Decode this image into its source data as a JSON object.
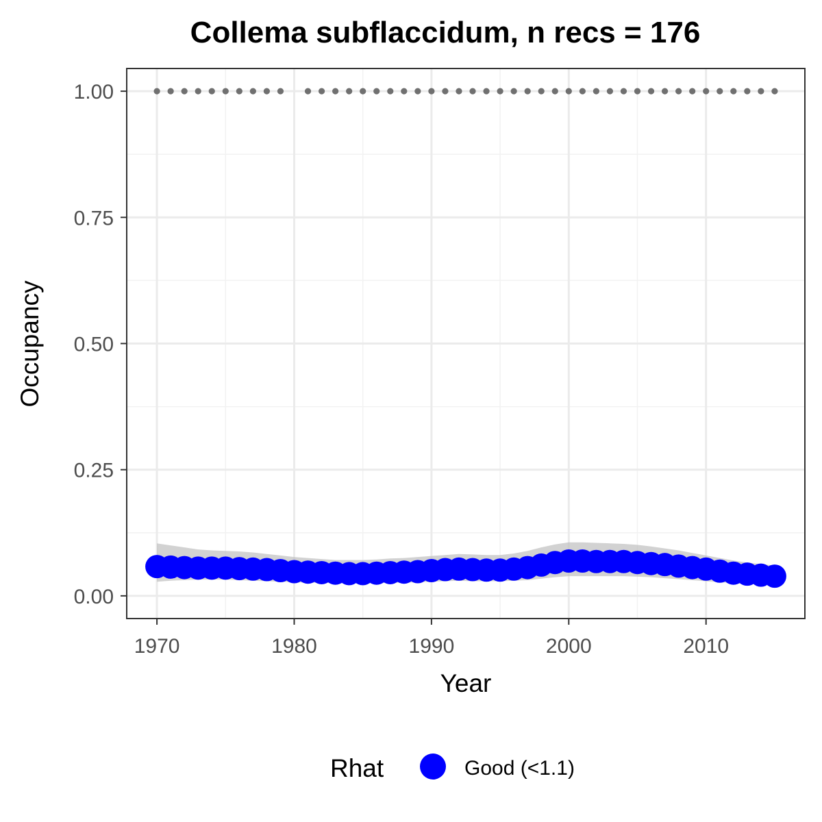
{
  "chart_data": {
    "type": "line",
    "title": "Collema subflaccidum, n recs = 176",
    "xlabel": "Year",
    "ylabel": "Occupancy",
    "xlim": [
      1967.8,
      2017.2
    ],
    "ylim": [
      -0.045,
      1.045
    ],
    "x_ticks": [
      1970,
      1980,
      1990,
      2000,
      2010
    ],
    "x_tick_labels": [
      "1970",
      "1980",
      "1990",
      "2000",
      "2010"
    ],
    "y_ticks": [
      0,
      0.25,
      0.5,
      0.75,
      1
    ],
    "y_tick_labels": [
      "0.00",
      "0.25",
      "0.50",
      "0.75",
      "1.00"
    ],
    "grid": true,
    "legend_position": "bottom",
    "legend": {
      "title": "Rhat",
      "entries": [
        {
          "label": "Good (<1.1)",
          "color": "#0000ff"
        }
      ]
    },
    "series": [
      {
        "type": "points",
        "color": "#0000ff",
        "x": [
          1970,
          1971,
          1972,
          1973,
          1974,
          1975,
          1976,
          1977,
          1978,
          1979,
          1980,
          1981,
          1982,
          1983,
          1984,
          1985,
          1986,
          1987,
          1988,
          1989,
          1990,
          1991,
          1992,
          1993,
          1994,
          1995,
          1996,
          1997,
          1998,
          1999,
          2000,
          2001,
          2002,
          2003,
          2004,
          2005,
          2006,
          2007,
          2008,
          2009,
          2010,
          2011,
          2012,
          2013,
          2014,
          2015
        ],
        "y": [
          0.058,
          0.057,
          0.056,
          0.055,
          0.055,
          0.055,
          0.054,
          0.053,
          0.052,
          0.05,
          0.048,
          0.047,
          0.046,
          0.045,
          0.044,
          0.044,
          0.045,
          0.046,
          0.047,
          0.048,
          0.05,
          0.052,
          0.053,
          0.052,
          0.051,
          0.051,
          0.053,
          0.056,
          0.061,
          0.066,
          0.069,
          0.069,
          0.068,
          0.068,
          0.068,
          0.066,
          0.064,
          0.062,
          0.059,
          0.056,
          0.053,
          0.049,
          0.045,
          0.043,
          0.041,
          0.039
        ],
        "ci_lower": [
          0.028,
          0.03,
          0.031,
          0.032,
          0.032,
          0.032,
          0.031,
          0.03,
          0.029,
          0.028,
          0.027,
          0.026,
          0.026,
          0.025,
          0.025,
          0.025,
          0.025,
          0.026,
          0.026,
          0.027,
          0.028,
          0.029,
          0.03,
          0.029,
          0.029,
          0.029,
          0.03,
          0.031,
          0.034,
          0.037,
          0.039,
          0.039,
          0.039,
          0.039,
          0.039,
          0.038,
          0.037,
          0.035,
          0.033,
          0.031,
          0.029,
          0.027,
          0.025,
          0.024,
          0.023,
          0.022
        ],
        "ci_upper": [
          0.104,
          0.1,
          0.096,
          0.092,
          0.09,
          0.089,
          0.088,
          0.086,
          0.083,
          0.08,
          0.077,
          0.075,
          0.073,
          0.071,
          0.071,
          0.071,
          0.072,
          0.074,
          0.075,
          0.077,
          0.079,
          0.081,
          0.083,
          0.082,
          0.081,
          0.081,
          0.084,
          0.089,
          0.096,
          0.102,
          0.106,
          0.106,
          0.105,
          0.104,
          0.103,
          0.101,
          0.098,
          0.094,
          0.09,
          0.085,
          0.08,
          0.075,
          0.07,
          0.066,
          0.063,
          0.06
        ]
      },
      {
        "type": "record-markers",
        "color": "#707070",
        "y_value": 1.0,
        "x": [
          1970,
          1971,
          1972,
          1973,
          1974,
          1975,
          1976,
          1977,
          1978,
          1979,
          1981,
          1982,
          1983,
          1984,
          1985,
          1986,
          1987,
          1988,
          1989,
          1990,
          1991,
          1992,
          1993,
          1994,
          1995,
          1996,
          1997,
          1998,
          1999,
          2000,
          2001,
          2002,
          2003,
          2004,
          2005,
          2006,
          2007,
          2008,
          2009,
          2010,
          2011,
          2012,
          2013,
          2014,
          2015
        ]
      }
    ]
  }
}
